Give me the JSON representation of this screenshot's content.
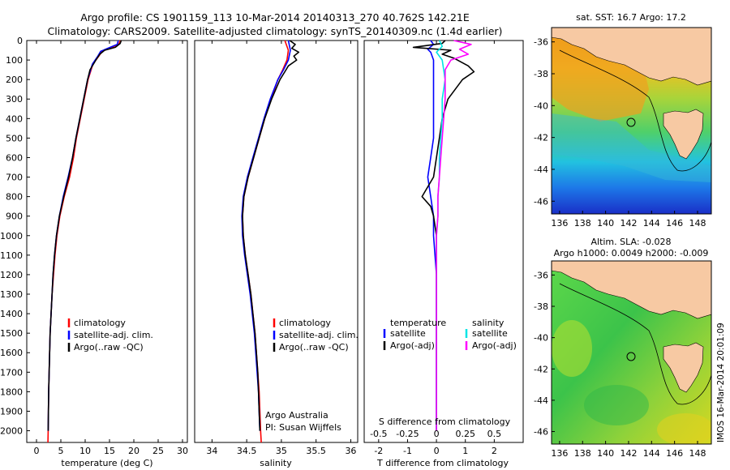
{
  "figure": {
    "title_line1": "Argo profile: CS 1901159_113 10-Mar-2014 20140313_270 40.762S 142.21E",
    "title_line2": "Climatology: CARS2009. Satellite-adjusted climatology: synTS_20140309.nc (1.4d earlier)",
    "vertical_stamp": "IMOS 16-Mar-2014 20:01:09",
    "colors": {
      "climatology": "#ff0000",
      "satellite": "#0000ff",
      "argo": "#000000",
      "sal_satellite": "#00e5e5",
      "sal_argo": "#ff00ff",
      "land": "#f7c9a3"
    }
  },
  "chart_data": [
    {
      "type": "line",
      "panel": "temperature",
      "xlabel": "temperature (deg C)",
      "xlim": [
        -2,
        31
      ],
      "xticks": [
        0,
        5,
        10,
        15,
        20,
        25,
        30
      ],
      "ylim": [
        2060,
        0
      ],
      "yticks": [
        0,
        100,
        200,
        300,
        400,
        500,
        600,
        700,
        800,
        900,
        1000,
        1100,
        1200,
        1300,
        1400,
        1500,
        1600,
        1700,
        1800,
        1900,
        2000
      ],
      "grid": false,
      "legend": [
        "climatology",
        "satellite-adj. clim.",
        "Argo(..raw -QC)"
      ],
      "series": [
        {
          "name": "climatology",
          "color": "#ff0000",
          "points": [
            [
              17.2,
              0
            ],
            [
              16.9,
              20
            ],
            [
              14.5,
              45
            ],
            [
              13.5,
              55
            ],
            [
              12.8,
              80
            ],
            [
              11.6,
              120
            ],
            [
              10.6,
              200
            ],
            [
              9.8,
              300
            ],
            [
              9.0,
              400
            ],
            [
              8.2,
              500
            ],
            [
              7.6,
              600
            ],
            [
              6.8,
              700
            ],
            [
              5.7,
              800
            ],
            [
              4.8,
              900
            ],
            [
              4.2,
              1000
            ],
            [
              3.8,
              1100
            ],
            [
              3.5,
              1200
            ],
            [
              3.2,
              1300
            ],
            [
              3.0,
              1400
            ],
            [
              2.8,
              1500
            ],
            [
              2.7,
              1600
            ],
            [
              2.6,
              1700
            ],
            [
              2.5,
              1800
            ],
            [
              2.45,
              1900
            ],
            [
              2.4,
              2000
            ],
            [
              2.35,
              2060
            ]
          ]
        },
        {
          "name": "satellite-adj. clim.",
          "color": "#0000ff",
          "points": [
            [
              16.8,
              0
            ],
            [
              16.6,
              20
            ],
            [
              14.2,
              45
            ],
            [
              13.2,
              55
            ],
            [
              12.6,
              80
            ],
            [
              11.5,
              120
            ],
            [
              10.5,
              200
            ],
            [
              9.7,
              300
            ],
            [
              8.9,
              400
            ],
            [
              8.1,
              500
            ],
            [
              7.4,
              600
            ],
            [
              6.5,
              700
            ],
            [
              5.5,
              800
            ],
            [
              4.7,
              900
            ],
            [
              4.1,
              1000
            ],
            [
              3.7,
              1100
            ],
            [
              3.4,
              1200
            ],
            [
              3.2,
              1300
            ],
            [
              3.0,
              1400
            ],
            [
              2.8,
              1500
            ],
            [
              2.7,
              1600
            ],
            [
              2.6,
              1700
            ],
            [
              2.5,
              1800
            ],
            [
              2.45,
              1900
            ],
            [
              2.4,
              2000
            ]
          ]
        },
        {
          "name": "Argo(..raw -QC)",
          "color": "#000000",
          "points": [
            [
              17.4,
              0
            ],
            [
              17.2,
              15
            ],
            [
              16.2,
              35
            ],
            [
              14.0,
              50
            ],
            [
              13.0,
              70
            ],
            [
              12.2,
              100
            ],
            [
              11.0,
              150
            ],
            [
              10.5,
              200
            ],
            [
              9.7,
              300
            ],
            [
              8.9,
              400
            ],
            [
              8.1,
              500
            ],
            [
              7.4,
              600
            ],
            [
              6.6,
              700
            ],
            [
              5.6,
              800
            ],
            [
              4.7,
              900
            ],
            [
              4.1,
              1000
            ],
            [
              3.7,
              1100
            ],
            [
              3.4,
              1200
            ],
            [
              3.2,
              1300
            ],
            [
              3.0,
              1400
            ],
            [
              2.8,
              1500
            ],
            [
              2.7,
              1600
            ],
            [
              2.6,
              1700
            ],
            [
              2.5,
              1800
            ],
            [
              2.45,
              1900
            ],
            [
              2.4,
              2000
            ]
          ]
        }
      ]
    },
    {
      "type": "line",
      "panel": "salinity",
      "xlabel": "salinity",
      "xlim": [
        33.75,
        36.1
      ],
      "xticks": [
        34,
        34.5,
        35,
        35.5,
        36
      ],
      "ylim": [
        2060,
        0
      ],
      "grid": false,
      "legend": [
        "climatology",
        "satellite-adj. clim.",
        "Argo(..raw -QC)"
      ],
      "annotation": [
        "Argo Australia",
        "PI: Susan Wijffels"
      ],
      "series": [
        {
          "name": "climatology",
          "color": "#ff0000",
          "points": [
            [
              35.05,
              0
            ],
            [
              35.1,
              50
            ],
            [
              35.08,
              100
            ],
            [
              35.02,
              150
            ],
            [
              34.95,
              200
            ],
            [
              34.85,
              300
            ],
            [
              34.76,
              400
            ],
            [
              34.68,
              500
            ],
            [
              34.6,
              600
            ],
            [
              34.52,
              700
            ],
            [
              34.46,
              800
            ],
            [
              34.44,
              900
            ],
            [
              34.45,
              1000
            ],
            [
              34.48,
              1100
            ],
            [
              34.52,
              1200
            ],
            [
              34.56,
              1300
            ],
            [
              34.59,
              1400
            ],
            [
              34.62,
              1500
            ],
            [
              34.64,
              1600
            ],
            [
              34.66,
              1700
            ],
            [
              34.68,
              1800
            ],
            [
              34.69,
              1900
            ],
            [
              34.7,
              2000
            ],
            [
              34.71,
              2060
            ]
          ]
        },
        {
          "name": "satellite-adj. clim.",
          "color": "#0000ff",
          "points": [
            [
              35.1,
              0
            ],
            [
              35.13,
              50
            ],
            [
              35.1,
              100
            ],
            [
              35.03,
              150
            ],
            [
              34.95,
              200
            ],
            [
              34.84,
              300
            ],
            [
              34.75,
              400
            ],
            [
              34.67,
              500
            ],
            [
              34.59,
              600
            ],
            [
              34.51,
              700
            ],
            [
              34.45,
              800
            ],
            [
              34.43,
              900
            ],
            [
              34.44,
              1000
            ],
            [
              34.47,
              1100
            ],
            [
              34.51,
              1200
            ],
            [
              34.55,
              1300
            ],
            [
              34.58,
              1400
            ],
            [
              34.61,
              1500
            ],
            [
              34.63,
              1600
            ],
            [
              34.65,
              1700
            ],
            [
              34.67,
              1800
            ],
            [
              34.68,
              1900
            ],
            [
              34.69,
              2000
            ]
          ]
        },
        {
          "name": "Argo(..raw -QC)",
          "color": "#000000",
          "points": [
            [
              35.12,
              0
            ],
            [
              35.2,
              20
            ],
            [
              35.15,
              40
            ],
            [
              35.25,
              60
            ],
            [
              35.18,
              80
            ],
            [
              35.22,
              100
            ],
            [
              35.1,
              130
            ],
            [
              35.05,
              160
            ],
            [
              34.98,
              200
            ],
            [
              34.86,
              300
            ],
            [
              34.76,
              400
            ],
            [
              34.68,
              500
            ],
            [
              34.6,
              600
            ],
            [
              34.52,
              700
            ],
            [
              34.46,
              800
            ],
            [
              34.44,
              900
            ],
            [
              34.45,
              1000
            ],
            [
              34.48,
              1100
            ],
            [
              34.52,
              1200
            ],
            [
              34.56,
              1300
            ],
            [
              34.59,
              1400
            ],
            [
              34.62,
              1500
            ],
            [
              34.64,
              1600
            ],
            [
              34.66,
              1700
            ],
            [
              34.67,
              1800
            ],
            [
              34.68,
              1900
            ],
            [
              34.69,
              2000
            ]
          ]
        }
      ]
    },
    {
      "type": "line",
      "panel": "differences",
      "xlabel": "T difference from climatology",
      "xlabel_top": "S difference from climatology",
      "xlim": [
        -2.5,
        3.0
      ],
      "xticks": [
        -2,
        -1,
        0,
        1,
        2
      ],
      "xticks_top": [
        "-0.5",
        "-0.25",
        "0",
        "0.25",
        "0.5"
      ],
      "ylim": [
        2060,
        0
      ],
      "grid": false,
      "legend_left": {
        "header": "temperature",
        "items": [
          "satellite",
          "Argo(-adj)"
        ]
      },
      "legend_right": {
        "header": "salinity",
        "items": [
          "satellite",
          "Argo(-adj)"
        ]
      },
      "series": [
        {
          "name": "satellite",
          "color": "#0000ff",
          "points": [
            [
              -0.2,
              0
            ],
            [
              -0.1,
              20
            ],
            [
              -0.3,
              45
            ],
            [
              -0.2,
              60
            ],
            [
              -0.1,
              100
            ],
            [
              -0.1,
              200
            ],
            [
              -0.1,
              300
            ],
            [
              -0.1,
              400
            ],
            [
              -0.1,
              500
            ],
            [
              -0.2,
              600
            ],
            [
              -0.3,
              700
            ],
            [
              -0.2,
              800
            ],
            [
              -0.1,
              900
            ],
            [
              -0.1,
              1000
            ],
            [
              0,
              1200
            ],
            [
              0,
              1500
            ],
            [
              0,
              2000
            ]
          ]
        },
        {
          "name": "Argo(-adj)",
          "color": "#000000",
          "points": [
            [
              0.3,
              0
            ],
            [
              0.2,
              15
            ],
            [
              -0.8,
              35
            ],
            [
              0.5,
              50
            ],
            [
              0.2,
              70
            ],
            [
              0.6,
              90
            ],
            [
              1.1,
              130
            ],
            [
              1.3,
              160
            ],
            [
              0.9,
              200
            ],
            [
              0.4,
              300
            ],
            [
              0.2,
              400
            ],
            [
              0.1,
              500
            ],
            [
              0,
              600
            ],
            [
              -0.1,
              700
            ],
            [
              -0.5,
              800
            ],
            [
              -0.2,
              850
            ],
            [
              -0.1,
              900
            ],
            [
              0,
              1000
            ],
            [
              0,
              1200
            ],
            [
              0,
              1500
            ],
            [
              0,
              2000
            ]
          ]
        },
        {
          "name": "satellite",
          "color": "#00e5e5",
          "points": [
            [
              0.1,
              0
            ],
            [
              0.2,
              30
            ],
            [
              0.0,
              60
            ],
            [
              0.2,
              100
            ],
            [
              0.3,
              200
            ],
            [
              0.2,
              300
            ],
            [
              0.2,
              400
            ],
            [
              0.15,
              500
            ],
            [
              0.1,
              600
            ],
            [
              0.1,
              700
            ],
            [
              0.05,
              800
            ],
            [
              0.05,
              900
            ],
            [
              0.0,
              1000
            ],
            [
              0,
              1200
            ],
            [
              0,
              1500
            ],
            [
              0,
              2000
            ]
          ]
        },
        {
          "name": "Argo(-adj)",
          "color": "#ff00ff",
          "points": [
            [
              0.6,
              0
            ],
            [
              1.2,
              20
            ],
            [
              0.8,
              45
            ],
            [
              1.1,
              70
            ],
            [
              0.5,
              100
            ],
            [
              0.3,
              150
            ],
            [
              0.3,
              200
            ],
            [
              0.3,
              300
            ],
            [
              0.25,
              400
            ],
            [
              0.2,
              500
            ],
            [
              0.15,
              600
            ],
            [
              0.1,
              700
            ],
            [
              0.05,
              800
            ],
            [
              0.05,
              900
            ],
            [
              0.0,
              1000
            ],
            [
              0,
              1200
            ],
            [
              0,
              1500
            ],
            [
              0,
              2000
            ]
          ]
        }
      ]
    },
    {
      "type": "heatmap",
      "panel": "map-sst",
      "title": "sat. SST: 16.7  Argo: 17.2",
      "xlim": [
        135.3,
        149.2
      ],
      "ylim": [
        -46.8,
        -35.1
      ],
      "xticks": [
        136,
        138,
        140,
        142,
        144,
        146,
        148
      ],
      "yticks": [
        -36,
        -38,
        -40,
        -42,
        -44,
        -46
      ],
      "marker": {
        "lon": 142.21,
        "lat": -40.762
      }
    },
    {
      "type": "heatmap",
      "panel": "map-sla",
      "title_line1": "Altim. SLA: -0.028",
      "title_line2": "Argo h1000: 0.0049 h2000: -0.009",
      "xlim": [
        135.3,
        149.2
      ],
      "ylim": [
        -46.8,
        -35.1
      ],
      "xticks": [
        136,
        138,
        140,
        142,
        144,
        146,
        148
      ],
      "yticks": [
        -36,
        -38,
        -40,
        -42,
        -44,
        -46
      ],
      "marker": {
        "lon": 142.21,
        "lat": -40.762
      }
    }
  ]
}
